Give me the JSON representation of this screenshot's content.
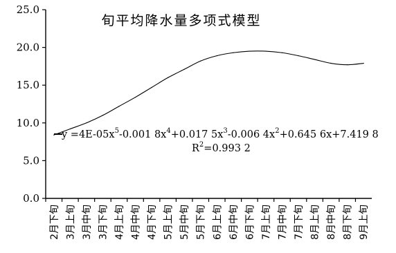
{
  "chart_data": {
    "type": "line",
    "title": "旬平均降水量多项式模型",
    "xlabel": "",
    "ylabel": "",
    "ylim": [
      0,
      25
    ],
    "y_ticks": [
      "0.0",
      "5.0",
      "10.0",
      "15.0",
      "20.0",
      "25.0"
    ],
    "grid": false,
    "categories": [
      "2月下旬",
      "3月上旬",
      "3月中旬",
      "3月下旬",
      "4月上旬",
      "4月中旬",
      "4月下旬",
      "5月上旬",
      "5月中旬",
      "5月下旬",
      "6月上旬",
      "6月中旬",
      "6月下旬",
      "7月上旬",
      "7月中旬",
      "7月下旬",
      "8月上旬",
      "8月中旬",
      "8月下旬",
      "9月上旬"
    ],
    "series": [
      {
        "values": [
          8.4,
          9.2,
          10.0,
          11.0,
          12.2,
          13.4,
          14.7,
          16.0,
          17.1,
          18.2,
          18.9,
          19.3,
          19.5,
          19.5,
          19.3,
          18.9,
          18.4,
          17.9,
          17.7,
          17.9
        ]
      }
    ],
    "equation": {
      "prefix": "y =4E-05x",
      "e1": "5",
      "m1": "-0.001 8x",
      "e2": "4",
      "m2": "+0.017 5x",
      "e3": "3",
      "m3": "-0.006 4x",
      "e4": "2",
      "m4": "+0.645 6x+7.419 8"
    },
    "r2": {
      "prefix": "R",
      "exp": "2",
      "value": "=0.993 2"
    },
    "legend_marker_color": "#000000"
  }
}
